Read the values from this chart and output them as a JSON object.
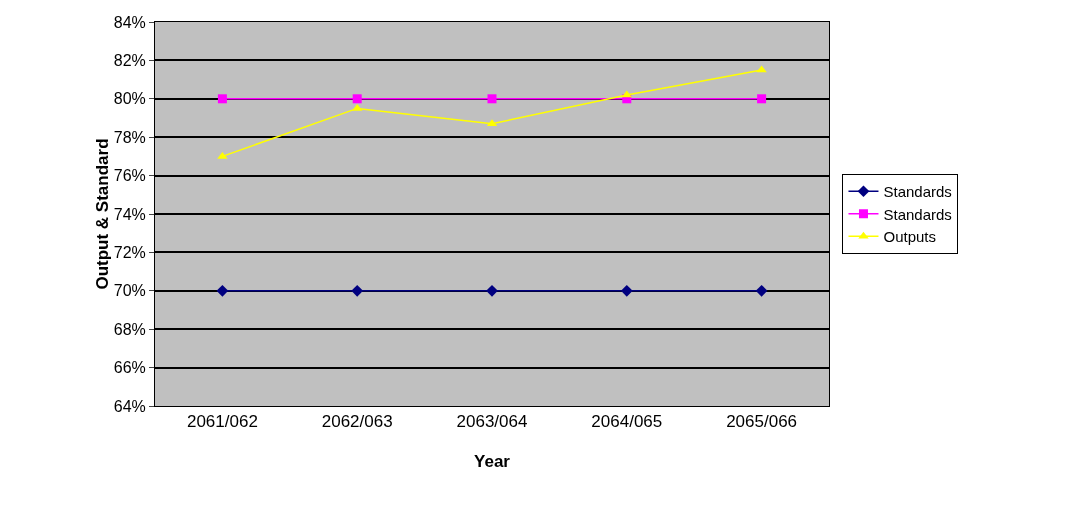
{
  "chart_data": {
    "type": "line",
    "xlabel": "Year",
    "ylabel": "Output & Standard",
    "categories": [
      "2061/062",
      "2062/063",
      "2063/064",
      "2064/065",
      "2065/066"
    ],
    "series": [
      {
        "name": "Standards",
        "color": "#000080",
        "marker": "diamond",
        "values": [
          70,
          70,
          70,
          70,
          70
        ]
      },
      {
        "name": "Standards",
        "color": "#ff00ff",
        "marker": "square",
        "values": [
          80,
          80,
          80,
          80,
          80
        ]
      },
      {
        "name": "Outputs",
        "color": "#ffff00",
        "marker": "triangle",
        "values": [
          77.0,
          79.5,
          78.7,
          80.2,
          81.5
        ]
      }
    ],
    "ylim": [
      64,
      84
    ],
    "yticks": [
      {
        "value": 64,
        "label": "64%"
      },
      {
        "value": 66,
        "label": "66%"
      },
      {
        "value": 68,
        "label": "68%"
      },
      {
        "value": 70,
        "label": "70%"
      },
      {
        "value": 72,
        "label": "72%"
      },
      {
        "value": 74,
        "label": "74%"
      },
      {
        "value": 76,
        "label": "76%"
      },
      {
        "value": 78,
        "label": "78%"
      },
      {
        "value": 80,
        "label": "80%"
      },
      {
        "value": 82,
        "label": "82%"
      },
      {
        "value": 84,
        "label": "84%"
      }
    ],
    "grid": "y",
    "legend": "right",
    "line_style": "solid"
  }
}
